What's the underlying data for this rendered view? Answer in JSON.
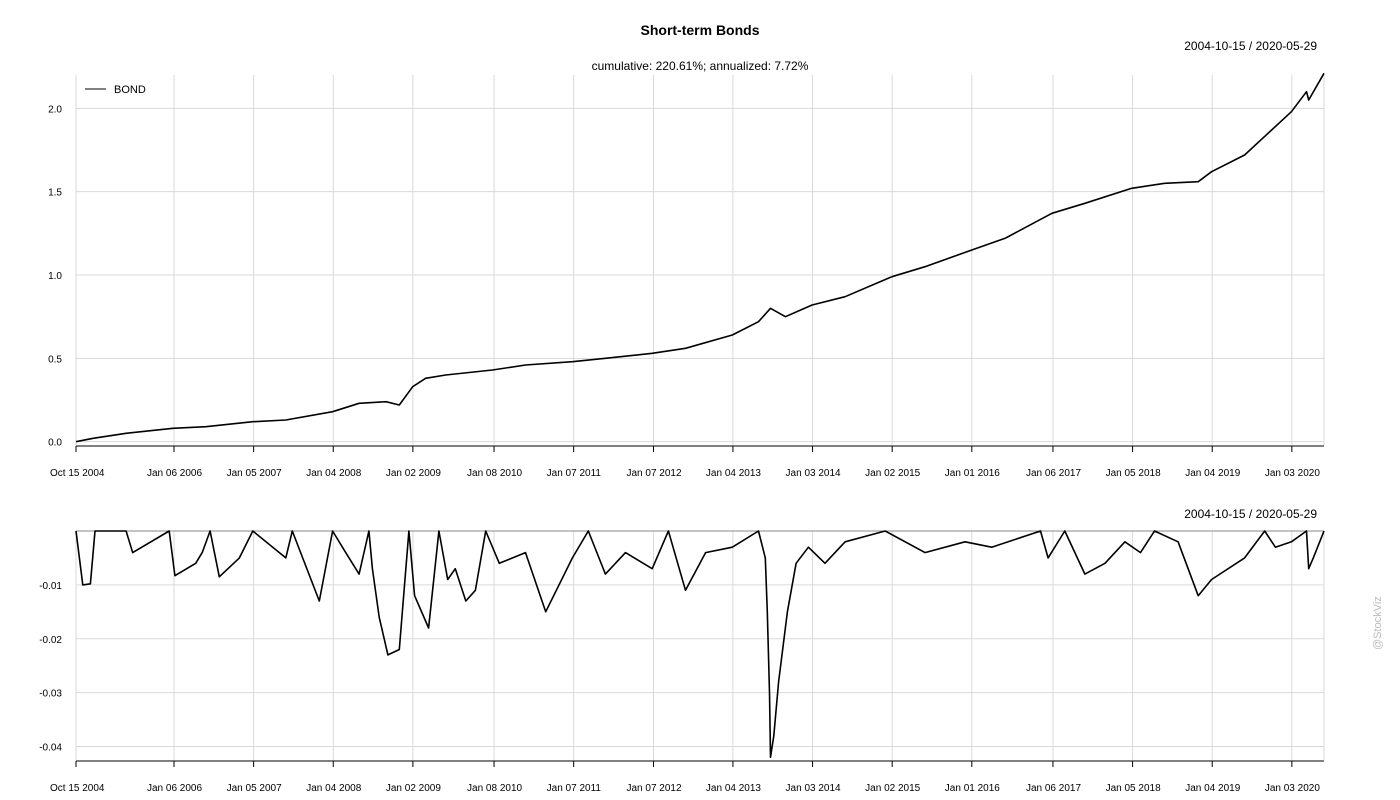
{
  "title": "Short-term Bonds",
  "subtitle": "cumulative: 220.61%; annualized: 7.72%",
  "date_range": "2004-10-15 / 2020-05-29",
  "watermark": "@StockViz",
  "chart_data": [
    {
      "type": "line",
      "panel": "cumulative",
      "x_ticks": [
        "Oct 15 2004",
        "Jan 06 2006",
        "Jan 05 2007",
        "Jan 04 2008",
        "Jan 02 2009",
        "Jan 08 2010",
        "Jan 07 2011",
        "Jan 07 2012",
        "Jan 04 2013",
        "Jan 03 2014",
        "Jan 02 2015",
        "Jan 01 2016",
        "Jan 06 2017",
        "Jan 05 2018",
        "Jan 04 2019",
        "Jan 03 2020"
      ],
      "y_ticks": [
        "0.0",
        "0.5",
        "1.0",
        "1.5",
        "2.0"
      ],
      "ylim": [
        -0.02,
        2.2
      ],
      "xlim": [
        "2004-10-15",
        "2020-05-29"
      ],
      "legend": {
        "position": "top-left",
        "entries": [
          "BOND"
        ]
      },
      "grid": true,
      "series": [
        {
          "name": "BOND",
          "color": "#000000",
          "x": [
            "2004-10-15",
            "2005-01-01",
            "2005-06-01",
            "2006-01-01",
            "2006-06-01",
            "2007-01-01",
            "2007-06-01",
            "2008-01-01",
            "2008-05-01",
            "2008-09-01",
            "2008-11-01",
            "2009-01-01",
            "2009-03-01",
            "2009-06-01",
            "2010-01-01",
            "2010-06-01",
            "2011-01-01",
            "2011-06-01",
            "2012-01-01",
            "2012-06-01",
            "2013-01-01",
            "2013-05-01",
            "2013-06-25",
            "2013-09-01",
            "2014-01-01",
            "2014-06-01",
            "2015-01-01",
            "2015-06-01",
            "2016-01-01",
            "2016-06-01",
            "2017-01-01",
            "2017-06-01",
            "2018-01-01",
            "2018-06-01",
            "2018-11-01",
            "2019-01-01",
            "2019-06-01",
            "2020-01-01",
            "2020-03-10",
            "2020-03-20",
            "2020-05-29"
          ],
          "y": [
            0.0,
            0.02,
            0.05,
            0.08,
            0.09,
            0.12,
            0.13,
            0.18,
            0.23,
            0.24,
            0.22,
            0.33,
            0.38,
            0.4,
            0.43,
            0.46,
            0.48,
            0.5,
            0.53,
            0.56,
            0.64,
            0.72,
            0.8,
            0.75,
            0.82,
            0.87,
            0.99,
            1.05,
            1.15,
            1.22,
            1.37,
            1.43,
            1.52,
            1.55,
            1.56,
            1.62,
            1.72,
            1.98,
            2.1,
            2.05,
            2.21
          ]
        }
      ]
    },
    {
      "type": "area",
      "panel": "drawdown",
      "x_ticks": [
        "Oct 15 2004",
        "Jan 06 2006",
        "Jan 05 2007",
        "Jan 04 2008",
        "Jan 02 2009",
        "Jan 08 2010",
        "Jan 07 2011",
        "Jan 07 2012",
        "Jan 04 2013",
        "Jan 03 2014",
        "Jan 02 2015",
        "Jan 01 2016",
        "Jan 06 2017",
        "Jan 05 2018",
        "Jan 04 2019",
        "Jan 03 2020"
      ],
      "y_ticks": [
        "-0.01",
        "-0.02",
        "-0.03",
        "-0.04"
      ],
      "ylim": [
        -0.0425,
        0
      ],
      "xlim": [
        "2004-10-15",
        "2020-05-29"
      ],
      "grid": true,
      "series": [
        {
          "name": "BOND",
          "color": "#000000",
          "x": [
            "2004-10-15",
            "2004-11-15",
            "2004-12-20",
            "2005-01-10",
            "2005-06-01",
            "2005-07-01",
            "2005-12-15",
            "2006-01-10",
            "2006-04-15",
            "2006-05-15",
            "2006-06-20",
            "2006-08-01",
            "2006-11-01",
            "2007-01-01",
            "2007-06-01",
            "2007-07-01",
            "2007-11-01",
            "2008-01-01",
            "2008-03-01",
            "2008-05-01",
            "2008-06-15",
            "2008-07-01",
            "2008-08-01",
            "2008-09-10",
            "2008-11-01",
            "2008-12-15",
            "2009-01-10",
            "2009-03-15",
            "2009-05-01",
            "2009-06-10",
            "2009-07-15",
            "2009-09-01",
            "2009-10-15",
            "2009-12-01",
            "2010-02-01",
            "2010-06-01",
            "2010-09-01",
            "2011-01-01",
            "2011-03-15",
            "2011-06-01",
            "2011-09-01",
            "2012-01-01",
            "2012-03-15",
            "2012-06-01",
            "2012-09-01",
            "2013-01-01",
            "2013-05-01",
            "2013-06-01",
            "2013-06-10",
            "2013-06-20",
            "2013-06-25",
            "2013-07-10",
            "2013-08-01",
            "2013-09-10",
            "2013-10-20",
            "2013-12-15",
            "2014-03-01",
            "2014-06-01",
            "2014-12-01",
            "2015-06-01",
            "2015-12-01",
            "2016-04-01",
            "2016-11-10",
            "2016-12-15",
            "2017-03-01",
            "2017-06-01",
            "2017-09-01",
            "2017-12-01",
            "2018-02-10",
            "2018-04-15",
            "2018-08-01",
            "2018-11-01",
            "2019-01-01",
            "2019-06-01",
            "2019-09-01",
            "2019-10-20",
            "2020-01-01",
            "2020-03-10",
            "2020-03-20",
            "2020-04-10",
            "2020-05-29"
          ],
          "y": [
            0,
            -0.01,
            -0.0098,
            0,
            0,
            -0.004,
            0,
            -0.0083,
            -0.006,
            -0.004,
            0,
            -0.0085,
            -0.005,
            0,
            -0.005,
            0,
            -0.013,
            0,
            -0.004,
            -0.008,
            0,
            -0.007,
            -0.016,
            -0.023,
            -0.022,
            0,
            -0.012,
            -0.018,
            0,
            -0.009,
            -0.007,
            -0.013,
            -0.011,
            0,
            -0.006,
            -0.004,
            -0.015,
            -0.005,
            0,
            -0.008,
            -0.004,
            -0.007,
            0,
            -0.011,
            -0.004,
            -0.003,
            0,
            -0.005,
            -0.015,
            -0.03,
            -0.042,
            -0.038,
            -0.028,
            -0.015,
            -0.006,
            -0.003,
            -0.006,
            -0.002,
            0,
            -0.004,
            -0.002,
            -0.003,
            0,
            -0.005,
            0,
            -0.008,
            -0.006,
            -0.002,
            -0.004,
            0,
            -0.002,
            -0.012,
            -0.009,
            -0.005,
            0,
            -0.003,
            -0.002,
            0,
            -0.007,
            -0.005,
            0
          ]
        }
      ]
    }
  ]
}
